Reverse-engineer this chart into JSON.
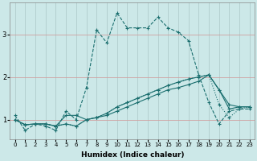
{
  "xlabel": "Humidex (Indice chaleur)",
  "bg_color": "#cce8e8",
  "line_color": "#1a6e6e",
  "xlim": [
    -0.5,
    23.5
  ],
  "ylim": [
    0.55,
    3.75
  ],
  "yticks": [
    1,
    2,
    3
  ],
  "xticks": [
    0,
    1,
    2,
    3,
    4,
    5,
    6,
    7,
    8,
    9,
    10,
    11,
    12,
    13,
    14,
    15,
    16,
    17,
    18,
    19,
    20,
    21,
    22,
    23
  ],
  "series": [
    {
      "x": [
        0,
        1,
        2,
        3,
        4,
        5,
        6,
        7,
        8,
        9,
        10,
        11,
        12,
        13,
        14,
        15,
        16,
        17,
        18,
        19,
        20,
        21,
        22,
        23
      ],
      "y": [
        1.1,
        0.75,
        0.9,
        0.85,
        0.75,
        1.2,
        1.0,
        1.75,
        3.1,
        2.8,
        3.5,
        3.15,
        3.15,
        3.15,
        3.4,
        3.15,
        3.05,
        2.85,
        2.05,
        1.4,
        0.9,
        1.2,
        1.25,
        1.25
      ],
      "style": "--",
      "marker": "+"
    },
    {
      "x": [
        0,
        1,
        2,
        3,
        4,
        5,
        6,
        7,
        8,
        9,
        10,
        11,
        12,
        13,
        14,
        15,
        16,
        17,
        18,
        19,
        20,
        21,
        22,
        23
      ],
      "y": [
        1.0,
        0.88,
        0.9,
        0.9,
        0.85,
        0.9,
        0.85,
        1.0,
        1.05,
        1.15,
        1.3,
        1.4,
        1.5,
        1.6,
        1.7,
        1.8,
        1.88,
        1.95,
        2.0,
        2.05,
        1.35,
        1.05,
        1.25,
        1.3
      ],
      "style": ":",
      "marker": "+"
    },
    {
      "x": [
        0,
        1,
        2,
        3,
        4,
        5,
        6,
        7,
        8,
        9,
        10,
        11,
        12,
        13,
        14,
        15,
        16,
        17,
        18,
        19,
        20,
        21,
        22,
        23
      ],
      "y": [
        1.0,
        0.88,
        0.9,
        0.9,
        0.85,
        0.9,
        0.85,
        1.0,
        1.05,
        1.15,
        1.3,
        1.4,
        1.5,
        1.6,
        1.7,
        1.8,
        1.88,
        1.95,
        2.0,
        2.05,
        1.7,
        1.25,
        1.3,
        1.3
      ],
      "style": "-",
      "marker": "+"
    },
    {
      "x": [
        0,
        1,
        2,
        3,
        4,
        5,
        6,
        7,
        8,
        9,
        10,
        11,
        12,
        13,
        14,
        15,
        16,
        17,
        18,
        19,
        20,
        21,
        22,
        23
      ],
      "y": [
        1.0,
        0.88,
        0.9,
        0.9,
        0.85,
        1.1,
        1.1,
        1.0,
        1.05,
        1.1,
        1.2,
        1.3,
        1.4,
        1.5,
        1.6,
        1.7,
        1.75,
        1.82,
        1.9,
        2.05,
        1.7,
        1.35,
        1.3,
        1.3
      ],
      "style": "-",
      "marker": "+"
    }
  ],
  "hgrid_color": "#d0a0a0",
  "vgrid_color": "#b0cccc"
}
